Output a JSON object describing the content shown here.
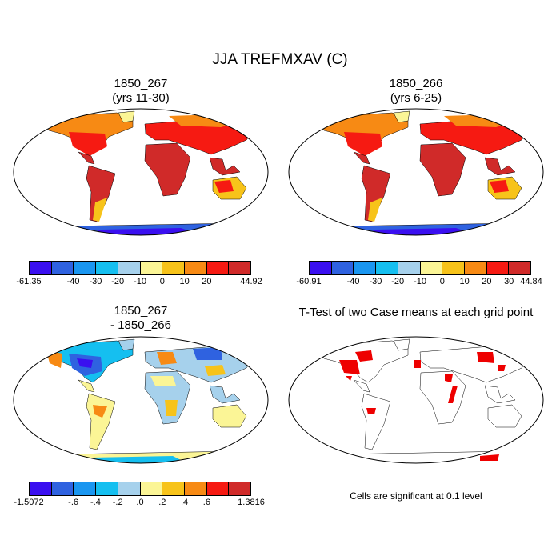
{
  "title": "JJA TREFMXAV (C)",
  "panels": [
    {
      "title_line1": "1850_267",
      "title_line2": "(yrs 11-30)"
    },
    {
      "title_line1": "1850_266",
      "title_line2": "(yrs 6-25)"
    },
    {
      "title_line1": "1850_267",
      "title_line2": "- 1850_266"
    },
    {
      "title_line1": "T-Test of two Case means at each grid point",
      "title_line2": ""
    }
  ],
  "colorbars": {
    "abs_colors": [
      "#3a0ff0",
      "#2f62e0",
      "#1a96f0",
      "#15bff0",
      "#a6d1ec",
      "#fbf596",
      "#f7c31a",
      "#f78a14",
      "#f61a12",
      "#d02a29"
    ],
    "diff_colors": [
      "#3a0ff0",
      "#2f62e0",
      "#1a96f0",
      "#15bff0",
      "#a6d1ec",
      "#fbf596",
      "#f7c31a",
      "#f78a14",
      "#f61a12",
      "#d02a29"
    ],
    "cbar1_ticks": [
      "-61.35",
      "-40",
      "-30",
      "-20",
      "-10",
      "0",
      "10",
      "20",
      "44.92"
    ],
    "cbar2_ticks": [
      "-60.91",
      "-40",
      "-30",
      "-20",
      "-10",
      "0",
      "10",
      "20",
      "30",
      "44.84"
    ],
    "cbar3_ticks": [
      "-1.5072",
      "-.6",
      "-.4",
      "-.2",
      ".0",
      ".2",
      ".4",
      ".6",
      "1.3816"
    ]
  },
  "significance_note": "Cells are significant at 0.1 level",
  "significance_color": "#ee0000"
}
